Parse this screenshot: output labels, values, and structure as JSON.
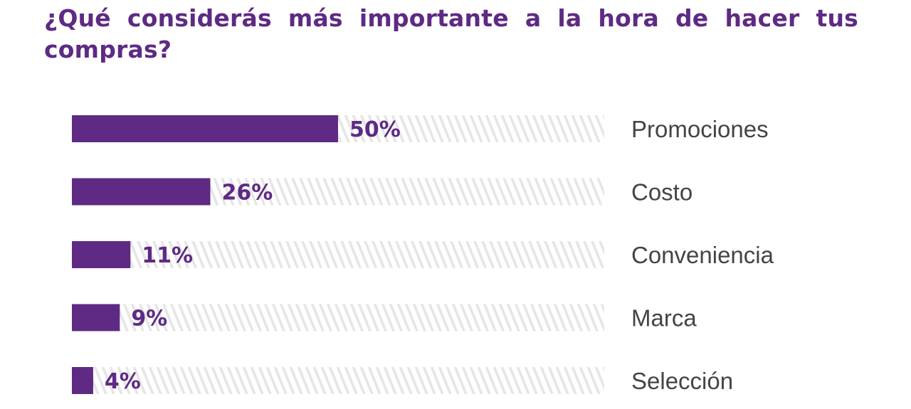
{
  "chart_data": {
    "type": "bar",
    "orientation": "horizontal",
    "title": "¿Qué considerás más importante a la hora de hacer tus compras?",
    "categories": [
      "Promociones",
      "Costo",
      "Conveniencia",
      "Marca",
      "Selección"
    ],
    "values": [
      50,
      26,
      11,
      9,
      4
    ],
    "value_labels": [
      "50%",
      "26%",
      "11%",
      "9%",
      "4%"
    ],
    "xlim": [
      0,
      100
    ],
    "unit": "%",
    "grid": false,
    "legend": "none",
    "colors": {
      "bar": "#5e2a84",
      "track_stripe": "#e6e6e6",
      "value_label": "#5e2a84",
      "category_label": "#444444",
      "title": "#5e2a84"
    }
  }
}
